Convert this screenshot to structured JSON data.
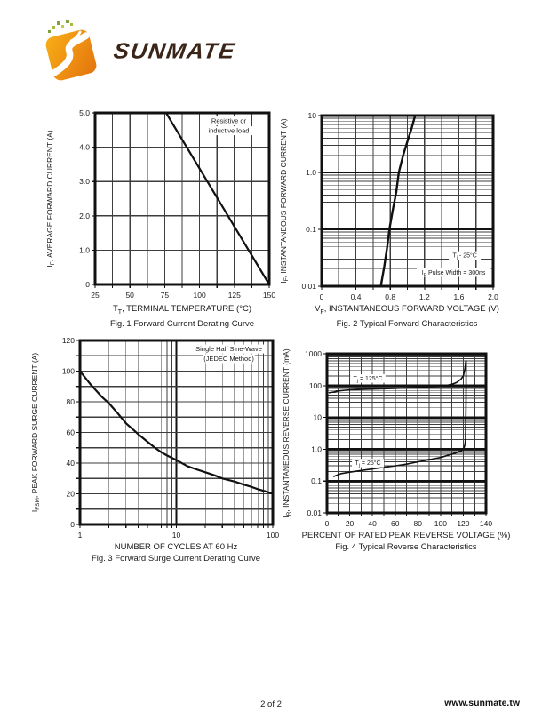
{
  "logo": {
    "brand": "SUNMATE"
  },
  "colors": {
    "logo_orange_light": "#F8AE17",
    "logo_orange_dark": "#E4740D",
    "logo_green1": "#A9B83E",
    "logo_green2": "#7FA03B",
    "logo_green3": "#C3CB4D",
    "wordmark_brown": "#3B2518",
    "ink": "#1A1A1A"
  },
  "page": {
    "page_number": "2 of 2",
    "website": "www.sunmate.tw"
  },
  "chart_data": [
    {
      "type": "line",
      "title": "Fig. 1  Forward Current Derating Curve",
      "xlabel_segments": [
        {
          "t": "T"
        },
        {
          "t": "T",
          "sub": true
        },
        {
          "t": ", TERMINAL TEMPERATURE (°C)"
        }
      ],
      "ylabel_segments": [
        {
          "t": "I"
        },
        {
          "t": "F",
          "sub": true
        },
        {
          "t": ", AVERAGE FORWARD CURRENT (A)"
        }
      ],
      "x_axis": {
        "scale": "linear",
        "min": 25,
        "max": 150,
        "grid_step": 12.5,
        "ticks": [
          {
            "v": 25,
            "label": "25"
          },
          {
            "v": 50,
            "label": "50"
          },
          {
            "v": 75,
            "label": "75"
          },
          {
            "v": 100,
            "label": "100"
          },
          {
            "v": 125,
            "label": "125"
          },
          {
            "v": 150,
            "label": "150"
          }
        ]
      },
      "y_axis": {
        "scale": "linear",
        "min": 0,
        "max": 5,
        "grid_step": 1,
        "ticks": [
          {
            "v": 0,
            "label": "0"
          },
          {
            "v": 1,
            "label": "1.0"
          },
          {
            "v": 2,
            "label": "2.0"
          },
          {
            "v": 3,
            "label": "3.0"
          },
          {
            "v": 4,
            "label": "4.0"
          },
          {
            "v": 5,
            "label": "5.0"
          }
        ]
      },
      "series": [
        {
          "name": "derating-curve",
          "points": [
            [
              25,
              5
            ],
            [
              76,
              5
            ],
            [
              150,
              0
            ]
          ]
        }
      ],
      "annotations": [
        {
          "x": 121,
          "y": 4.7,
          "bg": true,
          "lines": [
            [
              {
                "t": "Resistive or"
              }
            ],
            [
              {
                "t": "inductive load"
              }
            ]
          ]
        }
      ]
    },
    {
      "type": "line",
      "title": "Fig. 2  Typical Forward Characteristics",
      "xlabel_segments": [
        {
          "t": "V"
        },
        {
          "t": "F",
          "sub": true
        },
        {
          "t": ", INSTANTANEOUS FORWARD VOLTAGE (V)"
        }
      ],
      "ylabel_segments": [
        {
          "t": "I"
        },
        {
          "t": "F",
          "sub": true
        },
        {
          "t": ", INSTANTANEOUS FORWARD CURRENT (A)"
        }
      ],
      "x_axis": {
        "scale": "linear",
        "min": 0,
        "max": 2,
        "grid_step": 0.2,
        "ticks": [
          {
            "v": 0,
            "label": "0"
          },
          {
            "v": 0.4,
            "label": "0.4"
          },
          {
            "v": 0.8,
            "label": "0.8"
          },
          {
            "v": 1.2,
            "label": "1.2"
          },
          {
            "v": 1.6,
            "label": "1.6"
          },
          {
            "v": 2,
            "label": "2.0"
          }
        ]
      },
      "y_axis": {
        "scale": "log",
        "min": 0.01,
        "max": 10,
        "ticks": [
          {
            "v": 10,
            "label": "10"
          },
          {
            "v": 1,
            "label": "1.0"
          },
          {
            "v": 0.1,
            "label": "0.1"
          },
          {
            "v": 0.01,
            "label": "0.01"
          }
        ]
      },
      "series": [
        {
          "name": "forward-voltage-curve",
          "points": [
            [
              0.69,
              0.01
            ],
            [
              0.73,
              0.022
            ],
            [
              0.765,
              0.05
            ],
            [
              0.79,
              0.1
            ],
            [
              0.83,
              0.22
            ],
            [
              0.87,
              0.45
            ],
            [
              0.9,
              1.0
            ],
            [
              0.95,
              2.0
            ],
            [
              1.0,
              3.5
            ],
            [
              1.05,
              6
            ],
            [
              1.09,
              10
            ]
          ]
        }
      ],
      "annotations": [
        {
          "x": 1.67,
          "y": 0.032,
          "bg": true,
          "lines": [
            [
              {
                "t": "T"
              },
              {
                "t": "j",
                "sub": true
              },
              {
                "t": " - 25°C"
              }
            ]
          ]
        },
        {
          "x": 1.54,
          "y": 0.016,
          "bg": true,
          "lines": [
            [
              {
                "t": "I"
              },
              {
                "t": "F",
                "sub": true
              },
              {
                "t": " Pulse Width = 300ns"
              }
            ]
          ]
        }
      ]
    },
    {
      "type": "line",
      "title": "Fig. 3  Forward Surge Current Derating Curve",
      "xlabel_segments": [
        {
          "t": "NUMBER OF CYCLES AT 60 Hz"
        }
      ],
      "ylabel_segments": [
        {
          "t": "I"
        },
        {
          "t": "FSM",
          "sub": true
        },
        {
          "t": ", PEAK FORWARD SURGE CURRENT (A)"
        }
      ],
      "x_axis": {
        "scale": "log",
        "min": 1,
        "max": 100,
        "ticks": [
          {
            "v": 1,
            "label": "1"
          },
          {
            "v": 10,
            "label": "10"
          },
          {
            "v": 100,
            "label": "100"
          }
        ]
      },
      "y_axis": {
        "scale": "linear",
        "min": 0,
        "max": 120,
        "grid_step": 10,
        "ticks": [
          {
            "v": 0,
            "label": "0"
          },
          {
            "v": 20,
            "label": "20"
          },
          {
            "v": 40,
            "label": "40"
          },
          {
            "v": 60,
            "label": "60"
          },
          {
            "v": 80,
            "label": "80"
          },
          {
            "v": 100,
            "label": "100"
          },
          {
            "v": 120,
            "label": "120"
          }
        ]
      },
      "series": [
        {
          "name": "surge-derating-curve",
          "points": [
            [
              1,
              100
            ],
            [
              1.3,
              91
            ],
            [
              1.7,
              83
            ],
            [
              2,
              79
            ],
            [
              2.5,
              72
            ],
            [
              3,
              66
            ],
            [
              4,
              59
            ],
            [
              5,
              54
            ],
            [
              6,
              50
            ],
            [
              7,
              47
            ],
            [
              8,
              45
            ],
            [
              10,
              42
            ],
            [
              13,
              38
            ],
            [
              16,
              36
            ],
            [
              20,
              34
            ],
            [
              25,
              32
            ],
            [
              30,
              30
            ],
            [
              40,
              28
            ],
            [
              50,
              26
            ],
            [
              60,
              24.5
            ],
            [
              70,
              23
            ],
            [
              85,
              21.5
            ],
            [
              100,
              20
            ]
          ]
        }
      ],
      "annotations": [
        {
          "x": 35,
          "y": 113,
          "bg": true,
          "lines": [
            [
              {
                "t": "Single Half Sine-Wave"
              }
            ],
            [
              {
                "t": "(JEDEC Method)"
              }
            ]
          ]
        }
      ]
    },
    {
      "type": "line",
      "title": "Fig. 4  Typical Reverse Characteristics",
      "xlabel_segments": [
        {
          "t": "PERCENT OF RATED PEAK REVERSE VOLTAGE (%)"
        }
      ],
      "ylabel_segments": [
        {
          "t": "I"
        },
        {
          "t": "R",
          "sub": true
        },
        {
          "t": ", INSTANTANEOUS REVERSE CURRENT (mA)"
        }
      ],
      "x_axis": {
        "scale": "linear",
        "min": 0,
        "max": 140,
        "grid_step": 10,
        "ticks": [
          {
            "v": 0,
            "label": "0"
          },
          {
            "v": 20,
            "label": "20"
          },
          {
            "v": 40,
            "label": "40"
          },
          {
            "v": 60,
            "label": "60"
          },
          {
            "v": 80,
            "label": "80"
          },
          {
            "v": 100,
            "label": "100"
          },
          {
            "v": 120,
            "label": "120"
          },
          {
            "v": 140,
            "label": "140"
          }
        ]
      },
      "y_axis": {
        "scale": "log",
        "min": 0.01,
        "max": 1000,
        "ticks": [
          {
            "v": 1000,
            "label": "1000"
          },
          {
            "v": 100,
            "label": "100"
          },
          {
            "v": 10,
            "label": "10"
          },
          {
            "v": 1,
            "label": "1.0"
          },
          {
            "v": 0.1,
            "label": "0.1"
          },
          {
            "v": 0.01,
            "label": "0.01"
          }
        ]
      },
      "series": [
        {
          "name": "tj-125c",
          "points": [
            [
              2,
              60
            ],
            [
              6,
              63
            ],
            [
              10,
              68
            ],
            [
              15,
              71
            ],
            [
              20,
              73
            ],
            [
              30,
              76
            ],
            [
              40,
              78
            ],
            [
              50,
              80
            ],
            [
              60,
              82
            ],
            [
              70,
              85
            ],
            [
              80,
              88
            ],
            [
              90,
              92
            ],
            [
              100,
              97
            ],
            [
              105,
              101
            ],
            [
              110,
              110
            ],
            [
              114,
              125
            ],
            [
              118,
              160
            ],
            [
              120,
              200
            ],
            [
              121.5,
              350
            ],
            [
              122.3,
              600
            ]
          ]
        },
        {
          "name": "tj-25c",
          "points": [
            [
              6,
              0.14
            ],
            [
              12,
              0.17
            ],
            [
              20,
              0.19
            ],
            [
              30,
              0.215
            ],
            [
              40,
              0.24
            ],
            [
              50,
              0.27
            ],
            [
              60,
              0.3
            ],
            [
              70,
              0.34
            ],
            [
              80,
              0.4
            ],
            [
              90,
              0.47
            ],
            [
              100,
              0.55
            ],
            [
              105,
              0.62
            ],
            [
              110,
              0.7
            ],
            [
              114,
              0.78
            ],
            [
              118,
              0.88
            ],
            [
              120,
              0.95
            ],
            [
              121.5,
              1.4
            ],
            [
              122,
              2.2
            ],
            [
              122.4,
              30
            ],
            [
              122.5,
              600
            ]
          ]
        }
      ],
      "annotations": [
        {
          "x": 36,
          "y": 145,
          "bg": true,
          "lines": [
            [
              {
                "t": "T"
              },
              {
                "t": "j",
                "sub": true
              },
              {
                "t": " = 125°C"
              }
            ]
          ]
        },
        {
          "x": 36,
          "y": 0.32,
          "bg": true,
          "lines": [
            [
              {
                "t": "T"
              },
              {
                "t": "j",
                "sub": true
              },
              {
                "t": " = 25°C"
              }
            ]
          ]
        }
      ]
    }
  ]
}
